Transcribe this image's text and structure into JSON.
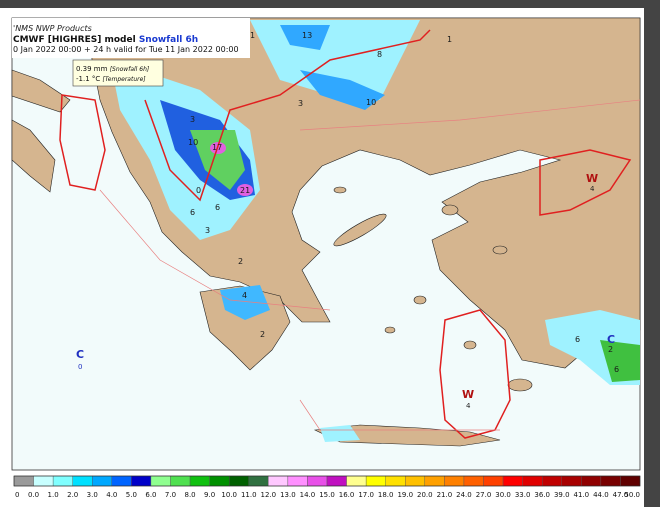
{
  "header": {
    "line1": "'NMS NWP Products",
    "line2a": "CMWF [HIGHRES] model ",
    "line2b": "Snowfall 6h",
    "line3": "0 Jan 2022 00:00 + 24 h valid for Tue 11 Jan 2022 00:00"
  },
  "tooltip": {
    "value": "0.39 mm",
    "value_note": "[Snowfall 6h]",
    "temp": "-1.1 °C",
    "temp_note": "[Temperature]"
  },
  "map_labels": [
    "13",
    "8",
    "1",
    "10",
    "3",
    "17",
    "21",
    "10",
    "6",
    "3",
    "0",
    "2",
    "6",
    "3",
    "4",
    "1",
    "6",
    "2",
    "6",
    "2"
  ],
  "pressure_labels": {
    "c_west": "C",
    "c_west_value": "0",
    "w_east": "W",
    "w_east_value": "4",
    "w_south": "W",
    "w_south_value": "4",
    "c_east": "C"
  },
  "colorbar": {
    "labels": [
      "0",
      "0.0",
      "1.0",
      "2.0",
      "3.0",
      "4.0",
      "5.0",
      "6.0",
      "7.0",
      "8.0",
      "9.0",
      "10.0",
      "11.0",
      "12.0",
      "13.0",
      "14.0",
      "15.0",
      "16.0",
      "17.0",
      "18.0",
      "19.0",
      "20.0",
      "21.0",
      "24.0",
      "27.0",
      "30.0",
      "33.0",
      "36.0",
      "39.0",
      "41.0",
      "44.0",
      "47.0",
      "50.0"
    ],
    "colors": [
      "#9a9a9a",
      "#c8ffff",
      "#80ffff",
      "#00e0ff",
      "#00a8ff",
      "#0064ff",
      "#0000c8",
      "#90ff90",
      "#50e050",
      "#10c010",
      "#009000",
      "#006000",
      "#307040",
      "#ffc8ff",
      "#ff90ff",
      "#e850e8",
      "#c010c0",
      "#ffff90",
      "#ffff00",
      "#ffe000",
      "#ffc000",
      "#ffa000",
      "#ff8000",
      "#ff6000",
      "#ff4000",
      "#ff0000",
      "#e00000",
      "#c00000",
      "#a80000",
      "#900000",
      "#780000",
      "#600000"
    ]
  }
}
